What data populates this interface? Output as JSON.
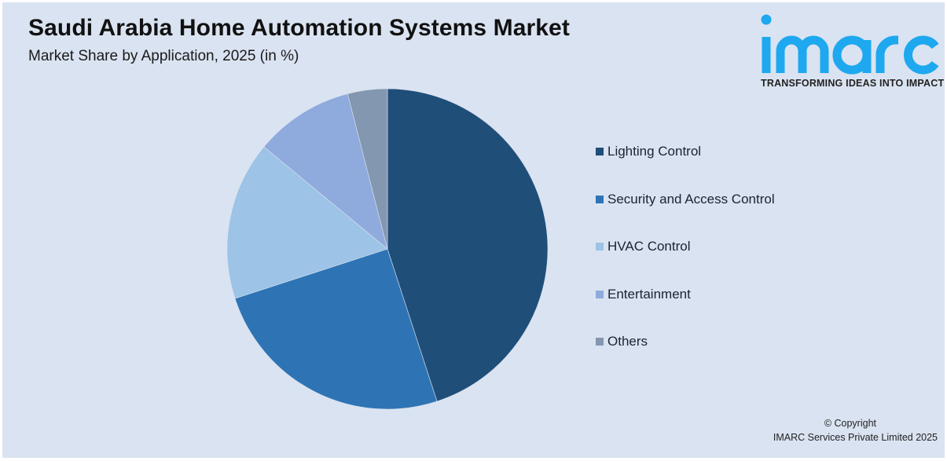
{
  "header": {
    "title": "Saudi Arabia Home Automation Systems Market",
    "subtitle": "Market Share by Application, 2025 (in %)"
  },
  "logo": {
    "wordmark": "imarc",
    "tagline": "TRANSFORMING IDEAS INTO IMPACT",
    "color": "#1ea8ef"
  },
  "footer": {
    "copyright_line1": "© Copyright",
    "copyright_line2": "IMARC Services Private Limited 2025"
  },
  "chart_data": {
    "type": "pie",
    "title": "Saudi Arabia Home Automation Systems Market",
    "subtitle": "Market Share by Application, 2025 (in %)",
    "categories": [
      "Lighting Control",
      "Security and Access Control",
      "HVAC Control",
      "Entertainment",
      "Others"
    ],
    "values": [
      45,
      25,
      16,
      10,
      4
    ],
    "colors": [
      "#1f4e79",
      "#2e74b5",
      "#9dc3e6",
      "#8faadc",
      "#8497b0"
    ],
    "start_angle_deg": 0,
    "direction": "clockwise",
    "legend_position": "right",
    "data_labels": false
  }
}
